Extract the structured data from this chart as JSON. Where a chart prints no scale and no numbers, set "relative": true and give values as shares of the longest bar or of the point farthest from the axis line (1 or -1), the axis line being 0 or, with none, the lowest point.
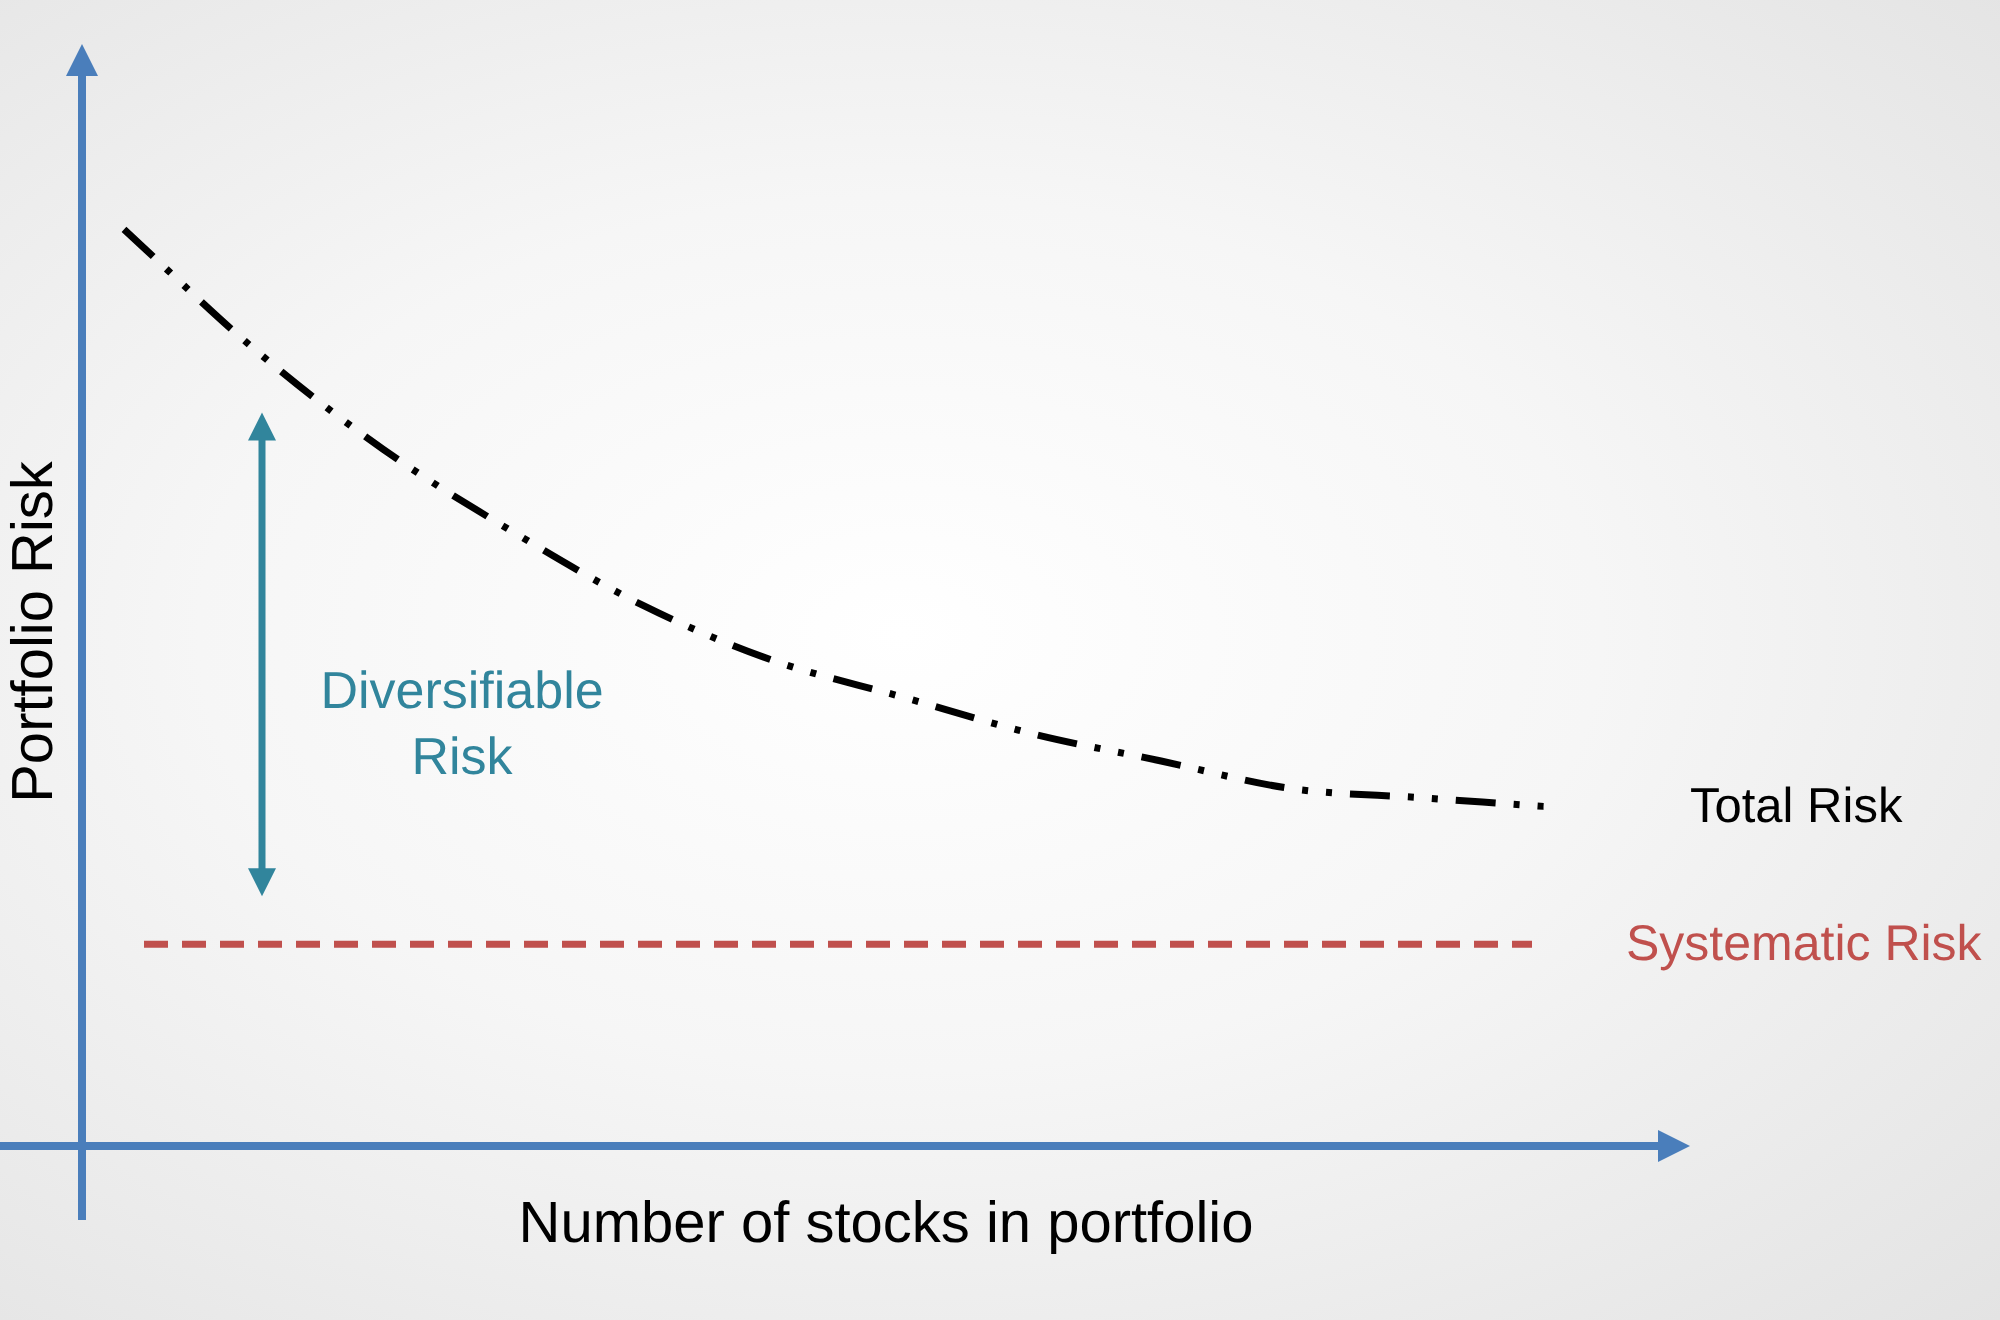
{
  "chart_data": {
    "type": "line",
    "relative": true,
    "xlabel": "Number of stocks in portfolio",
    "ylabel": "Portfolio Risk",
    "categories": [
      null,
      null,
      null,
      null,
      null,
      null,
      null,
      null,
      null,
      null,
      null,
      null
    ],
    "series": [
      {
        "name": "Total Risk",
        "color": "#000000",
        "values": [
          1,
          0.87,
          0.76,
          0.67,
          0.59,
          0.53,
          0.49,
          0.45,
          0.42,
          0.39,
          0.38,
          0.37
        ]
      }
    ],
    "line_style": "dashed",
    "marker": "none",
    "legend": false,
    "ref_lines": [
      {
        "axis": "y",
        "value": 0.22,
        "label": "Systematic Risk",
        "color": "#c0504d",
        "line_style": "dashed"
      }
    ],
    "annotations": [
      "Diversifiable Risk"
    ]
  }
}
